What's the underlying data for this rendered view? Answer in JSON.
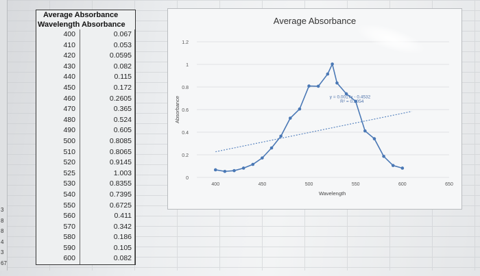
{
  "table": {
    "title": "Average Absorbance",
    "headers": [
      "Wavelength",
      "Absorbance"
    ],
    "rows": [
      [
        "400",
        "0.067"
      ],
      [
        "410",
        "0.053"
      ],
      [
        "420",
        "0.0595"
      ],
      [
        "430",
        "0.082"
      ],
      [
        "440",
        "0.115"
      ],
      [
        "450",
        "0.172"
      ],
      [
        "460",
        "0.2605"
      ],
      [
        "470",
        "0.365"
      ],
      [
        "480",
        "0.524"
      ],
      [
        "490",
        "0.605"
      ],
      [
        "500",
        "0.8085"
      ],
      [
        "510",
        "0.8065"
      ],
      [
        "520",
        "0.9145"
      ],
      [
        "525",
        "1.003"
      ],
      [
        "530",
        "0.8355"
      ],
      [
        "540",
        "0.7395"
      ],
      [
        "550",
        "0.6725"
      ],
      [
        "560",
        "0.411"
      ],
      [
        "570",
        "0.342"
      ],
      [
        "580",
        "0.186"
      ],
      [
        "590",
        "0.105"
      ],
      [
        "600",
        "0.082"
      ]
    ]
  },
  "row_header_fragments": [
    "3",
    "8",
    "8",
    "4",
    "3",
    "67"
  ],
  "chart_data": {
    "type": "scatter",
    "title": "Average Absorbance",
    "xlabel": "Wavelength",
    "ylabel": "Absorbance",
    "xlim": [
      380,
      650
    ],
    "ylim": [
      0,
      1.2
    ],
    "x_ticks": [
      "400",
      "450",
      "500",
      "550",
      "600",
      "650"
    ],
    "y_ticks": [
      "0",
      "0.2",
      "0.4",
      "0.6",
      "0.8",
      "1",
      "1.2"
    ],
    "series": [
      {
        "x": [
          400,
          410,
          420,
          430,
          440,
          450,
          460,
          470,
          480,
          490,
          500,
          510,
          520,
          525,
          530,
          540,
          550,
          560,
          570,
          580,
          590,
          600
        ],
        "y": [
          0.067,
          0.053,
          0.0595,
          0.082,
          0.115,
          0.172,
          0.2605,
          0.365,
          0.524,
          0.605,
          0.8085,
          0.8065,
          0.9145,
          1.003,
          0.8355,
          0.7395,
          0.6725,
          0.411,
          0.342,
          0.186,
          0.105,
          0.082
        ]
      }
    ],
    "trendline": {
      "equation": "y = 0.0017x - 0.4532",
      "r2": "R² = 0.1054",
      "slope": 0.0017,
      "intercept": -0.4532
    },
    "colors": {
      "series": "#4a78b5",
      "trend": "#5b86c0"
    }
  }
}
